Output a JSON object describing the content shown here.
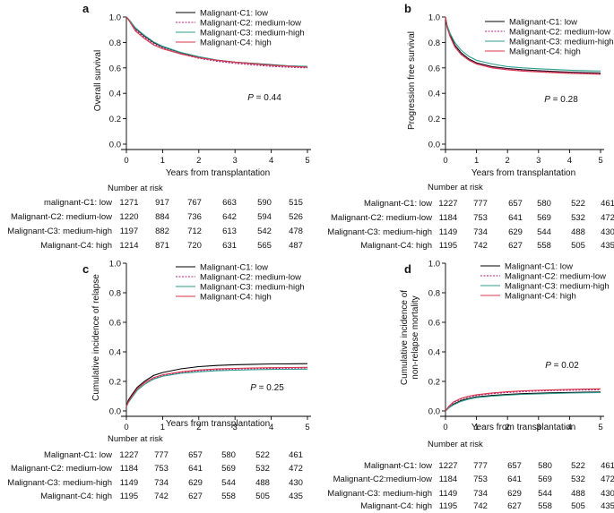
{
  "chart_data": [
    {
      "panel": "a",
      "type": "line",
      "ylabel": "Overall survival",
      "xlabel": "Years from transplantation",
      "xlim": [
        0,
        5
      ],
      "ylim": [
        0,
        1
      ],
      "xticks": [
        "0",
        "1",
        "2",
        "3",
        "4",
        "5"
      ],
      "yticks": [
        "0.0",
        "0.2",
        "0.4",
        "0.6",
        "0.8",
        "1.0"
      ],
      "pvalue_label": "P",
      "pvalue_text": " = 0.44",
      "legend_position": "top-right",
      "series": [
        {
          "name": "Malignant-C1: low",
          "color": "#000000",
          "dash": "solid",
          "x": [
            0,
            0.1,
            0.25,
            0.5,
            0.75,
            1,
            1.5,
            2,
            2.5,
            3,
            3.5,
            4,
            4.5,
            5
          ],
          "y": [
            1,
            0.97,
            0.91,
            0.85,
            0.8,
            0.765,
            0.72,
            0.685,
            0.66,
            0.645,
            0.635,
            0.625,
            0.615,
            0.61
          ]
        },
        {
          "name": "Malignant-C2: medium-low",
          "color": "#b0207a",
          "dash": "dotted",
          "x": [
            0,
            0.1,
            0.25,
            0.5,
            0.75,
            1,
            1.5,
            2,
            2.5,
            3,
            3.5,
            4,
            4.5,
            5
          ],
          "y": [
            1,
            0.965,
            0.9,
            0.84,
            0.79,
            0.755,
            0.71,
            0.675,
            0.652,
            0.635,
            0.623,
            0.612,
            0.605,
            0.6
          ]
        },
        {
          "name": "Malignant-C3: medium-high",
          "color": "#2e9e8f",
          "dash": "solid",
          "x": [
            0,
            0.1,
            0.25,
            0.5,
            0.75,
            1,
            1.5,
            2,
            2.5,
            3,
            3.5,
            4,
            4.5,
            5
          ],
          "y": [
            1,
            0.97,
            0.915,
            0.855,
            0.805,
            0.77,
            0.722,
            0.688,
            0.662,
            0.645,
            0.633,
            0.622,
            0.615,
            0.612
          ]
        },
        {
          "name": "Malignant-C4: high",
          "color": "#d9344a",
          "dash": "solid",
          "x": [
            0,
            0.1,
            0.25,
            0.5,
            0.75,
            1,
            1.5,
            2,
            2.5,
            3,
            3.5,
            4,
            4.5,
            5
          ],
          "y": [
            1,
            0.96,
            0.89,
            0.83,
            0.78,
            0.75,
            0.71,
            0.68,
            0.66,
            0.645,
            0.632,
            0.62,
            0.612,
            0.605
          ]
        }
      ],
      "risk_title": "Number at risk",
      "risk_rows": [
        {
          "label": "malignant-C1: low",
          "values": [
            "1271",
            "917",
            "767",
            "663",
            "590",
            "515"
          ]
        },
        {
          "label": "Malignant-C2: medium-low",
          "values": [
            "1220",
            "884",
            "736",
            "642",
            "594",
            "526"
          ]
        },
        {
          "label": "Malignant-C3: medium-high",
          "values": [
            "1197",
            "882",
            "712",
            "613",
            "542",
            "478"
          ]
        },
        {
          "label": "Malignant-C4: high",
          "values": [
            "1214",
            "871",
            "720",
            "631",
            "565",
            "487"
          ]
        }
      ]
    },
    {
      "panel": "b",
      "type": "line",
      "ylabel": "Progression free survival",
      "xlabel": "Years from transplantation",
      "xlim": [
        0,
        5
      ],
      "ylim": [
        0,
        1
      ],
      "xticks": [
        "0",
        "1",
        "2",
        "3",
        "4",
        "5"
      ],
      "yticks": [
        "0.0",
        "0.2",
        "0.4",
        "0.6",
        "0.8",
        "1.0"
      ],
      "pvalue_label": "P",
      "pvalue_text": " = 0.28",
      "legend_position": "top-right",
      "series": [
        {
          "name": "Malignant-C1: low",
          "color": "#000000",
          "dash": "solid",
          "x": [
            0,
            0.05,
            0.15,
            0.3,
            0.5,
            0.75,
            1,
            1.5,
            2,
            2.5,
            3,
            3.5,
            4,
            4.5,
            5
          ],
          "y": [
            1,
            0.93,
            0.86,
            0.78,
            0.72,
            0.67,
            0.64,
            0.61,
            0.595,
            0.585,
            0.578,
            0.572,
            0.567,
            0.563,
            0.56
          ]
        },
        {
          "name": "Malignant-C2: medium-low",
          "color": "#b0207a",
          "dash": "dotted",
          "x": [
            0,
            0.05,
            0.15,
            0.3,
            0.5,
            0.75,
            1,
            1.5,
            2,
            2.5,
            3,
            3.5,
            4,
            4.5,
            5
          ],
          "y": [
            1,
            0.92,
            0.85,
            0.77,
            0.71,
            0.665,
            0.635,
            0.605,
            0.59,
            0.58,
            0.573,
            0.567,
            0.562,
            0.558,
            0.555
          ]
        },
        {
          "name": "Malignant-C3: medium-high",
          "color": "#2e9e8f",
          "dash": "solid",
          "x": [
            0,
            0.05,
            0.15,
            0.3,
            0.5,
            0.75,
            1,
            1.5,
            2,
            2.5,
            3,
            3.5,
            4,
            4.5,
            5
          ],
          "y": [
            1,
            0.94,
            0.87,
            0.8,
            0.74,
            0.69,
            0.66,
            0.63,
            0.61,
            0.6,
            0.593,
            0.587,
            0.582,
            0.578,
            0.575
          ]
        },
        {
          "name": "Malignant-C4: high",
          "color": "#d9344a",
          "dash": "solid",
          "x": [
            0,
            0.05,
            0.15,
            0.3,
            0.5,
            0.75,
            1,
            1.5,
            2,
            2.5,
            3,
            3.5,
            4,
            4.5,
            5
          ],
          "y": [
            1,
            0.92,
            0.845,
            0.765,
            0.705,
            0.66,
            0.63,
            0.6,
            0.585,
            0.575,
            0.568,
            0.562,
            0.557,
            0.553,
            0.55
          ]
        }
      ],
      "risk_title": "Number at risk",
      "risk_rows": [
        {
          "label": "Malignant-C1: low",
          "values": [
            "1227",
            "777",
            "657",
            "580",
            "522",
            "461"
          ]
        },
        {
          "label": "Malignant-C2: medium-low",
          "values": [
            "1184",
            "753",
            "641",
            "569",
            "532",
            "472"
          ]
        },
        {
          "label": "Malignant-C3: medium-high",
          "values": [
            "1149",
            "734",
            "629",
            "544",
            "488",
            "430"
          ]
        },
        {
          "label": "Malignant-C4: high",
          "values": [
            "1195",
            "742",
            "627",
            "558",
            "505",
            "435"
          ]
        }
      ]
    },
    {
      "panel": "c",
      "type": "line",
      "ylabel": "Cumulative incidence of relapse",
      "xlabel": "Years from transplantation",
      "xlim": [
        0,
        5
      ],
      "ylim": [
        0,
        1
      ],
      "xticks": [
        "0",
        "1",
        "2",
        "3",
        "4",
        "5"
      ],
      "yticks": [
        "0.0",
        "0.2",
        "0.4",
        "0.6",
        "0.8",
        "1.0"
      ],
      "pvalue_label": "P",
      "pvalue_text": " = 0.25",
      "legend_position": "top-right",
      "series": [
        {
          "name": "Malignant-C1: low",
          "color": "#000000",
          "dash": "solid",
          "x": [
            0,
            0.05,
            0.15,
            0.3,
            0.5,
            0.75,
            1,
            1.5,
            2,
            2.5,
            3,
            3.5,
            4,
            4.5,
            5
          ],
          "y": [
            0.03,
            0.07,
            0.11,
            0.16,
            0.2,
            0.24,
            0.26,
            0.285,
            0.3,
            0.308,
            0.313,
            0.316,
            0.318,
            0.319,
            0.32
          ]
        },
        {
          "name": "Malignant-C2: medium-low",
          "color": "#b0207a",
          "dash": "dotted",
          "x": [
            0,
            0.05,
            0.15,
            0.3,
            0.5,
            0.75,
            1,
            1.5,
            2,
            2.5,
            3,
            3.5,
            4,
            4.5,
            5
          ],
          "y": [
            0.03,
            0.06,
            0.1,
            0.15,
            0.19,
            0.22,
            0.24,
            0.26,
            0.272,
            0.279,
            0.283,
            0.286,
            0.288,
            0.289,
            0.29
          ]
        },
        {
          "name": "Malignant-C3: medium-high",
          "color": "#2e9e8f",
          "dash": "solid",
          "x": [
            0,
            0.05,
            0.15,
            0.3,
            0.5,
            0.75,
            1,
            1.5,
            2,
            2.5,
            3,
            3.5,
            4,
            4.5,
            5
          ],
          "y": [
            0.03,
            0.055,
            0.09,
            0.14,
            0.18,
            0.215,
            0.235,
            0.255,
            0.265,
            0.272,
            0.276,
            0.279,
            0.281,
            0.282,
            0.283
          ]
        },
        {
          "name": "Malignant-C4: high",
          "color": "#d9344a",
          "dash": "solid",
          "x": [
            0,
            0.05,
            0.15,
            0.3,
            0.5,
            0.75,
            1,
            1.5,
            2,
            2.5,
            3,
            3.5,
            4,
            4.5,
            5
          ],
          "y": [
            0.03,
            0.06,
            0.1,
            0.15,
            0.19,
            0.225,
            0.245,
            0.265,
            0.277,
            0.284,
            0.288,
            0.291,
            0.293,
            0.294,
            0.295
          ]
        }
      ],
      "risk_title": "Number at risk",
      "risk_rows": [
        {
          "label": "Malignant-C1: low",
          "values": [
            "1227",
            "777",
            "657",
            "580",
            "522",
            "461"
          ]
        },
        {
          "label": "Malignant-C2: medium-low",
          "values": [
            "1184",
            "753",
            "641",
            "569",
            "532",
            "472"
          ]
        },
        {
          "label": "Malignant-C3: medium-high",
          "values": [
            "1149",
            "734",
            "629",
            "544",
            "488",
            "430"
          ]
        },
        {
          "label": "Malignant-C4: high",
          "values": [
            "1195",
            "742",
            "627",
            "558",
            "505",
            "435"
          ]
        }
      ]
    },
    {
      "panel": "d",
      "type": "line",
      "ylabel_lines": [
        "Cumulative incidence of",
        "non-relapse mortality"
      ],
      "xlabel": "Years from transplantation",
      "xlim": [
        0,
        5
      ],
      "ylim": [
        0,
        1
      ],
      "xticks": [
        "0",
        "1",
        "2",
        "3",
        "4",
        "5"
      ],
      "yticks": [
        "0.0",
        "0.2",
        "0.4",
        "0.6",
        "0.8",
        "1.0"
      ],
      "pvalue_label": "P",
      "pvalue_text": " = 0.02",
      "legend_position": "top-right",
      "series": [
        {
          "name": "Malignant-C1: low",
          "color": "#000000",
          "dash": "solid",
          "x": [
            0,
            0.1,
            0.25,
            0.5,
            0.75,
            1,
            1.5,
            2,
            2.5,
            3,
            3.5,
            4,
            4.5,
            5
          ],
          "y": [
            0,
            0.02,
            0.045,
            0.07,
            0.085,
            0.095,
            0.105,
            0.112,
            0.117,
            0.12,
            0.123,
            0.125,
            0.127,
            0.128
          ]
        },
        {
          "name": "Malignant-C2: medium-low",
          "color": "#b0207a",
          "dash": "dotted",
          "x": [
            0,
            0.1,
            0.25,
            0.5,
            0.75,
            1,
            1.5,
            2,
            2.5,
            3,
            3.5,
            4,
            4.5,
            5
          ],
          "y": [
            0,
            0.025,
            0.055,
            0.08,
            0.095,
            0.105,
            0.117,
            0.125,
            0.131,
            0.135,
            0.138,
            0.14,
            0.142,
            0.143
          ]
        },
        {
          "name": "Malignant-C3: medium-high",
          "color": "#2e9e8f",
          "dash": "solid",
          "x": [
            0,
            0.1,
            0.25,
            0.5,
            0.75,
            1,
            1.5,
            2,
            2.5,
            3,
            3.5,
            4,
            4.5,
            5
          ],
          "y": [
            0,
            0.02,
            0.04,
            0.065,
            0.08,
            0.09,
            0.1,
            0.107,
            0.112,
            0.116,
            0.119,
            0.121,
            0.123,
            0.124
          ]
        },
        {
          "name": "Malignant-C4: high",
          "color": "#d9344a",
          "dash": "solid",
          "x": [
            0,
            0.1,
            0.25,
            0.5,
            0.75,
            1,
            1.5,
            2,
            2.5,
            3,
            3.5,
            4,
            4.5,
            5
          ],
          "y": [
            0,
            0.03,
            0.06,
            0.085,
            0.1,
            0.11,
            0.122,
            0.13,
            0.136,
            0.14,
            0.143,
            0.146,
            0.148,
            0.15
          ]
        }
      ],
      "risk_title": "Number at risk",
      "risk_rows": [
        {
          "label": "Malignant-C1: low",
          "values": [
            "1227",
            "777",
            "657",
            "580",
            "522",
            "461"
          ]
        },
        {
          "label": "Malignant-C2:medium-low",
          "values": [
            "1184",
            "753",
            "641",
            "569",
            "532",
            "472"
          ]
        },
        {
          "label": "Malignant-C3: medium-high",
          "values": [
            "1149",
            "734",
            "629",
            "544",
            "488",
            "430"
          ]
        },
        {
          "label": "Malignant-C4: high",
          "values": [
            "1195",
            "742",
            "627",
            "558",
            "505",
            "435"
          ]
        }
      ]
    }
  ]
}
